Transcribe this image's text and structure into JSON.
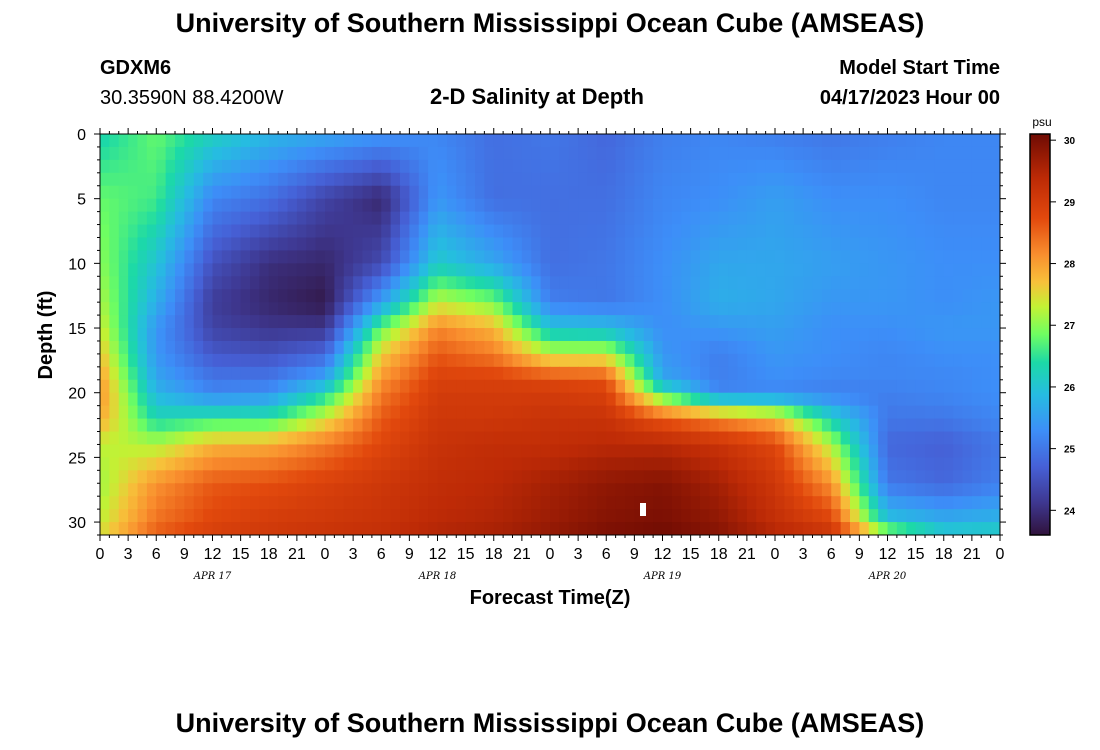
{
  "header": {
    "title": "University of Southern Mississippi Ocean Cube (AMSEAS)",
    "station_id": "GDXM6",
    "location": "30.3590N  88.4200W",
    "model_start_label": "Model Start Time",
    "model_start_value": "04/17/2023 Hour 00",
    "footer_title": "University of Southern Mississippi Ocean Cube (AMSEAS)"
  },
  "chart_data": {
    "type": "heatmap",
    "title": "2-D Salinity at Depth",
    "xlabel": "Forecast Time(Z)",
    "ylabel": "Depth (ft)",
    "x_hours_range": [
      0,
      96
    ],
    "y_range": [
      0,
      31
    ],
    "y_inverted": true,
    "x_tick_labels": [
      "0",
      "3",
      "6",
      "9",
      "12",
      "15",
      "18",
      "21",
      "0",
      "3",
      "6",
      "9",
      "12",
      "15",
      "18",
      "21",
      "0",
      "3",
      "6",
      "9",
      "12",
      "15",
      "18",
      "21",
      "0",
      "3",
      "6",
      "9",
      "12",
      "15",
      "18",
      "21",
      "0"
    ],
    "y_tick_labels": [
      "0",
      "5",
      "10",
      "15",
      "20",
      "25",
      "30"
    ],
    "y_ticks": [
      0,
      5,
      10,
      15,
      20,
      25,
      30
    ],
    "date_labels": [
      {
        "label": "APR 17",
        "hour": 12
      },
      {
        "label": "APR 18",
        "hour": 36
      },
      {
        "label": "APR 19",
        "hour": 60
      },
      {
        "label": "APR 20",
        "hour": 84
      }
    ],
    "colorbar": {
      "unit": "psu",
      "min": 23.6,
      "max": 30.1,
      "tick_labels": [
        "24",
        "25",
        "26",
        "27",
        "28",
        "29",
        "30"
      ],
      "ticks": [
        24,
        25,
        26,
        27,
        28,
        29,
        30
      ]
    },
    "depths_ft": [
      0,
      5,
      10,
      13,
      15,
      17,
      19,
      20,
      22,
      24,
      27,
      30,
      31
    ],
    "hours": [
      0,
      6,
      12,
      18,
      24,
      30,
      36,
      42,
      48,
      54,
      60,
      66,
      72,
      78,
      84,
      90,
      96
    ],
    "salinity_psu": [
      [
        26.3,
        26.8,
        26.2,
        25.8,
        25.6,
        25.4,
        25.2,
        24.9,
        25.0,
        24.8,
        25.1,
        25.2,
        25.1,
        25.0,
        25.1,
        25.2,
        25.2
      ],
      [
        26.8,
        26.6,
        25.2,
        24.9,
        24.3,
        23.9,
        25.4,
        24.9,
        24.9,
        24.9,
        25.2,
        25.3,
        25.5,
        25.3,
        25.3,
        25.2,
        25.2
      ],
      [
        27.0,
        26.0,
        24.5,
        24.0,
        23.9,
        24.4,
        26.1,
        25.6,
        24.9,
        25.0,
        25.3,
        25.6,
        25.6,
        25.5,
        25.4,
        25.3,
        25.3
      ],
      [
        27.2,
        25.7,
        24.2,
        23.9,
        23.7,
        25.5,
        27.3,
        26.9,
        25.1,
        25.0,
        25.3,
        25.7,
        25.6,
        25.4,
        25.4,
        25.3,
        25.4
      ],
      [
        27.4,
        25.4,
        24.3,
        24.1,
        24.1,
        26.8,
        28.2,
        27.8,
        26.0,
        25.9,
        25.3,
        25.4,
        25.5,
        25.3,
        25.3,
        25.4,
        25.4
      ],
      [
        27.7,
        25.4,
        24.6,
        24.5,
        24.8,
        27.6,
        28.6,
        28.3,
        27.3,
        27.3,
        25.4,
        25.1,
        25.4,
        25.3,
        25.2,
        25.3,
        25.3
      ],
      [
        28.0,
        25.6,
        25.0,
        25.0,
        25.6,
        28.1,
        28.9,
        28.9,
        28.8,
        28.7,
        25.6,
        25.1,
        25.3,
        25.2,
        25.2,
        25.2,
        25.3
      ],
      [
        28.1,
        25.8,
        25.2,
        25.3,
        26.3,
        28.3,
        29.0,
        29.0,
        29.0,
        28.9,
        26.6,
        25.2,
        25.2,
        25.1,
        25.1,
        25.2,
        25.3
      ],
      [
        27.9,
        26.3,
        26.5,
        26.5,
        27.4,
        28.6,
        29.1,
        29.1,
        29.2,
        29.2,
        28.6,
        28.2,
        27.8,
        26.2,
        25.0,
        25.0,
        25.2
      ],
      [
        27.3,
        27.2,
        27.8,
        27.9,
        28.3,
        28.8,
        29.2,
        29.3,
        29.3,
        29.4,
        29.4,
        29.2,
        28.8,
        27.2,
        24.8,
        24.7,
        25.0
      ],
      [
        27.1,
        28.1,
        28.6,
        28.7,
        28.9,
        29.1,
        29.3,
        29.4,
        29.6,
        29.8,
        29.9,
        29.6,
        29.1,
        28.1,
        25.0,
        24.8,
        25.1
      ],
      [
        27.3,
        28.4,
        28.8,
        29.0,
        29.1,
        29.2,
        29.4,
        29.5,
        29.7,
        29.9,
        30.0,
        29.8,
        29.3,
        28.9,
        26.0,
        25.7,
        25.8
      ],
      [
        27.5,
        28.6,
        29.0,
        29.1,
        29.2,
        29.3,
        29.5,
        29.6,
        29.8,
        30.0,
        30.1,
        29.9,
        29.5,
        29.2,
        27.4,
        26.2,
        26.3
      ]
    ]
  }
}
